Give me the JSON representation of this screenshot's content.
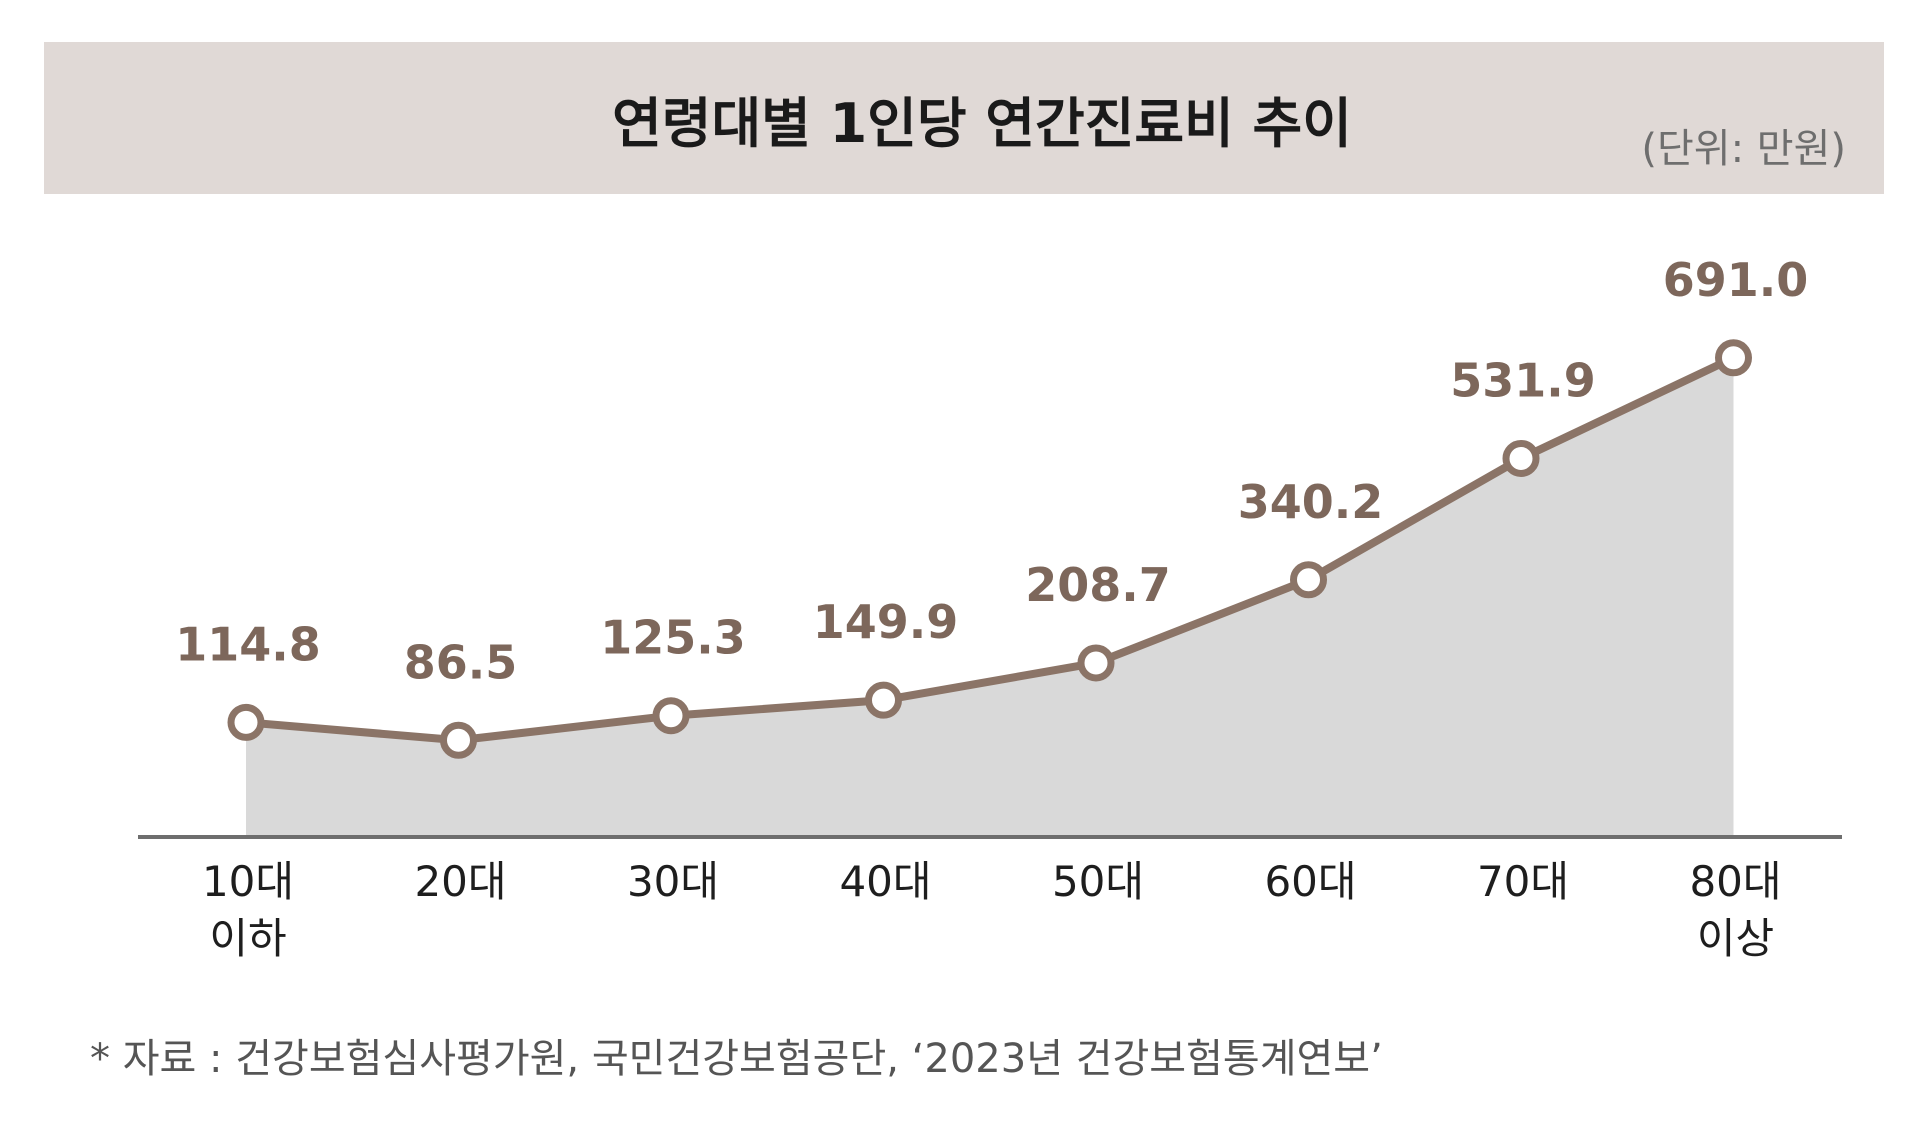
{
  "chart_data": {
    "type": "line",
    "title": "연령대별 1인당 연간진료비 추이",
    "unit": "(단위: 만원)",
    "categories": [
      [
        "10대",
        "이하"
      ],
      [
        "20대"
      ],
      [
        "30대"
      ],
      [
        "40대"
      ],
      [
        "50대"
      ],
      [
        "60대"
      ],
      [
        "70대"
      ],
      [
        "80대",
        "이상"
      ]
    ],
    "values": [
      114.8,
      86.5,
      125.3,
      149.9,
      208.7,
      340.2,
      531.9,
      691.0
    ],
    "value_labels": [
      "114.8",
      "86.5",
      "125.3",
      "149.9",
      "208.7",
      "340.2",
      "531.9",
      "691.0"
    ],
    "area_fill": true,
    "grid": false,
    "xlabel": "",
    "ylabel": "",
    "ylim": [
      0,
      700
    ]
  },
  "source": "* 자료 : 건강보험심사평가원, 국민건강보험공단, ‘2023년 건강보험통계연보’",
  "colors": {
    "header_band": "#e0d9d6",
    "line": "#8b7467",
    "area": "#d9d9d9",
    "label": "#7d675b"
  }
}
